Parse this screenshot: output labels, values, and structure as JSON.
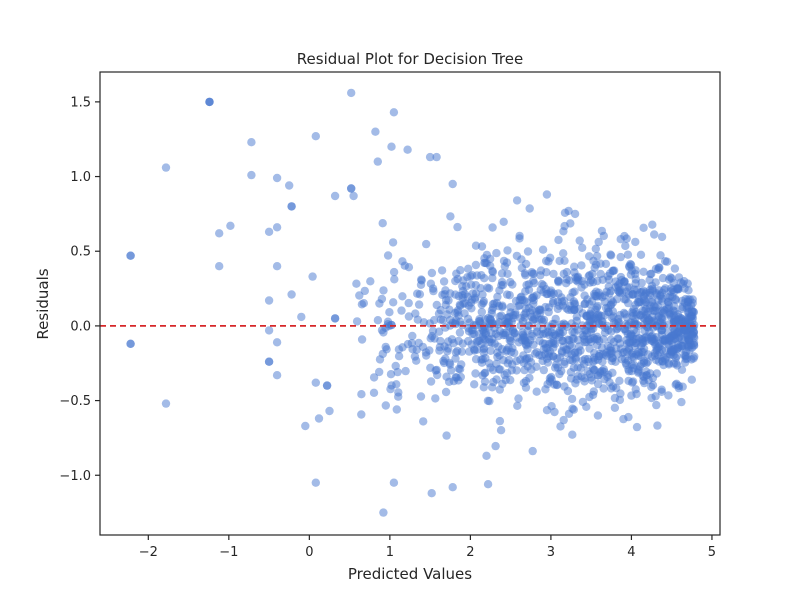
{
  "chart_data": {
    "type": "scatter",
    "title": "Residual Plot for Decision Tree",
    "xlabel": "Predicted Values",
    "ylabel": "Residuals",
    "xlim": [
      -2.6,
      5.1
    ],
    "ylim": [
      -1.4,
      1.7
    ],
    "xticks": [
      -2,
      -1,
      0,
      1,
      2,
      3,
      4,
      5
    ],
    "yticks": [
      -1.0,
      -0.5,
      0.0,
      0.5,
      1.0,
      1.5
    ],
    "xtick_labels": [
      "−2",
      "−1",
      "0",
      "1",
      "2",
      "3",
      "4",
      "5"
    ],
    "ytick_labels": [
      "−1.0",
      "−0.5",
      "0.0",
      "0.5",
      "1.0",
      "1.5"
    ],
    "grid": false,
    "legend": "none",
    "point_color": "#4878d0",
    "point_alpha": 0.5,
    "reference_line": {
      "y": 0.0,
      "style": "dashed",
      "color": "#d62728"
    },
    "sparse_points": [
      [
        -2.22,
        0.47
      ],
      [
        -2.22,
        0.47
      ],
      [
        -2.22,
        -0.12
      ],
      [
        -2.22,
        -0.12
      ],
      [
        -1.78,
        1.06
      ],
      [
        -1.78,
        -0.52
      ],
      [
        -1.24,
        1.5
      ],
      [
        -1.24,
        1.5
      ],
      [
        -1.24,
        1.5
      ],
      [
        -1.12,
        0.62
      ],
      [
        -1.12,
        0.4
      ],
      [
        -0.98,
        0.67
      ],
      [
        -0.72,
        1.23
      ],
      [
        -0.72,
        1.01
      ],
      [
        -0.5,
        0.63
      ],
      [
        -0.5,
        0.17
      ],
      [
        -0.5,
        -0.03
      ],
      [
        -0.5,
        -0.24
      ],
      [
        -0.5,
        -0.24
      ],
      [
        -0.4,
        0.99
      ],
      [
        -0.4,
        0.66
      ],
      [
        -0.4,
        0.4
      ],
      [
        -0.4,
        -0.11
      ],
      [
        -0.4,
        -0.33
      ],
      [
        -0.25,
        0.94
      ],
      [
        -0.22,
        0.8
      ],
      [
        -0.22,
        0.8
      ],
      [
        -0.22,
        0.21
      ],
      [
        -0.1,
        0.06
      ],
      [
        -0.05,
        -0.67
      ],
      [
        0.04,
        0.33
      ],
      [
        0.08,
        1.27
      ],
      [
        0.08,
        -0.38
      ],
      [
        0.08,
        -1.05
      ],
      [
        0.12,
        -0.62
      ],
      [
        0.22,
        -0.4
      ],
      [
        0.22,
        -0.4
      ],
      [
        0.25,
        -0.57
      ],
      [
        0.32,
        0.87
      ],
      [
        0.32,
        0.05
      ],
      [
        0.32,
        0.05
      ],
      [
        0.52,
        1.56
      ],
      [
        0.52,
        0.92
      ],
      [
        0.52,
        0.92
      ],
      [
        0.55,
        0.87
      ],
      [
        0.82,
        1.3
      ],
      [
        0.85,
        1.1
      ],
      [
        0.92,
        -1.25
      ],
      [
        1.05,
        1.43
      ],
      [
        1.02,
        1.2
      ],
      [
        1.05,
        -1.05
      ],
      [
        1.22,
        1.18
      ],
      [
        1.5,
        1.13
      ],
      [
        1.58,
        1.13
      ],
      [
        1.52,
        -1.12
      ],
      [
        1.78,
        0.95
      ],
      [
        1.78,
        -1.08
      ],
      [
        2.22,
        -1.06
      ],
      [
        2.2,
        -0.87
      ],
      [
        3.22,
        0.77
      ],
      [
        2.58,
        0.84
      ],
      [
        2.95,
        0.88
      ],
      [
        3.3,
        0.75
      ],
      [
        4.75,
        -0.36
      ],
      [
        4.62,
        -0.51
      ]
    ],
    "dense_cluster": {
      "description_count": 1400,
      "x_range": [
        0.5,
        4.8
      ],
      "y_center": 0.0
    }
  }
}
